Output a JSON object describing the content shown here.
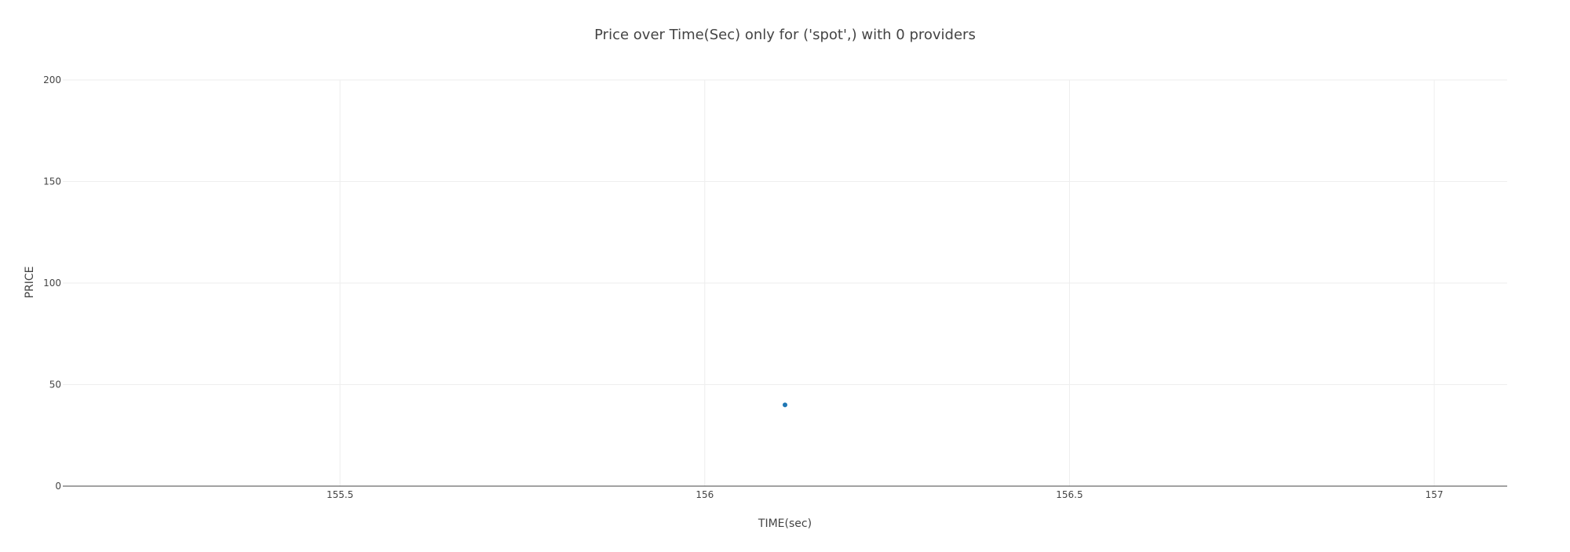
{
  "chart_data": {
    "type": "scatter",
    "title": "Price over Time(Sec) only for ('spot',) with 0 providers",
    "xlabel": "TIME(sec)",
    "ylabel": "PRICE",
    "xlim": [
      155.12,
      157.1
    ],
    "ylim": [
      0,
      200
    ],
    "x_ticks": [
      155.5,
      156,
      156.5,
      157
    ],
    "x_tick_labels": [
      "155.5",
      "156",
      "156.5",
      "157"
    ],
    "y_ticks": [
      0,
      50,
      100,
      150,
      200
    ],
    "y_tick_labels": [
      "0",
      "50",
      "100",
      "150",
      "200"
    ],
    "grid": true,
    "legend": "none",
    "series": [
      {
        "color": "#1f77b4",
        "points": [
          {
            "x": 156.11,
            "y": 40
          }
        ]
      }
    ],
    "colors": {
      "grid": "#eeeeee",
      "axis": "#444444",
      "text": "#444444",
      "background": "#ffffff"
    }
  }
}
